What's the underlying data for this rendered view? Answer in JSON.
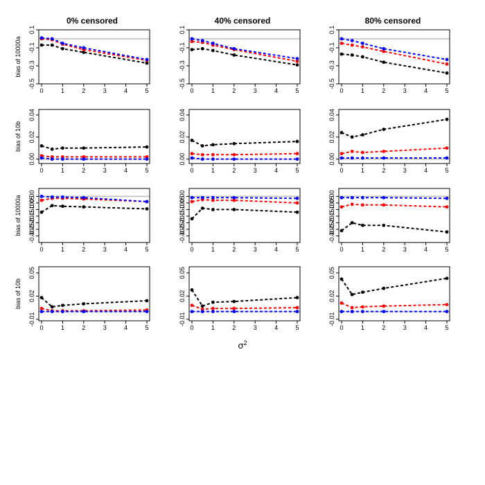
{
  "figure": {
    "x_axis_label": "σ",
    "x_axis_superscript": "2",
    "column_titles": [
      "0% censored",
      "40% censored",
      "80% censored"
    ],
    "row_ylabels": [
      "bias of 10000a",
      "bias of 10b",
      "bias of 10000a",
      "bias of 10b"
    ]
  },
  "colors": {
    "black": "#000000",
    "red": "#ff0000",
    "blue": "#0000ff",
    "reference": "#bebebe"
  },
  "chart_data": [
    {
      "type": "line",
      "row": 0,
      "col": 0,
      "title": "0% censored",
      "ylabel": "bias of 10000a",
      "ylim": [
        -0.5,
        0.1
      ],
      "yticks": [
        -0.5,
        -0.3,
        -0.1,
        0.1
      ],
      "ytick_labels": [
        "-0.5",
        "-0.3",
        "-0.1",
        "0.1"
      ],
      "xlim": [
        0,
        5
      ],
      "xticks": [
        0,
        1,
        2,
        3,
        4,
        5
      ],
      "xtick_labels": [
        "0",
        "1",
        "2",
        "3",
        "4",
        "5"
      ],
      "reference_y": 0,
      "x": [
        0,
        0.5,
        1,
        2,
        5
      ],
      "series": [
        {
          "color": "black",
          "values": [
            -0.07,
            -0.07,
            -0.11,
            -0.15,
            -0.27
          ]
        },
        {
          "color": "red",
          "values": [
            0.0,
            -0.01,
            -0.06,
            -0.12,
            -0.24
          ]
        },
        {
          "color": "blue",
          "values": [
            0.01,
            0.0,
            -0.05,
            -0.1,
            -0.23
          ]
        }
      ]
    },
    {
      "type": "line",
      "row": 0,
      "col": 1,
      "title": "40% censored",
      "ylabel": "",
      "ylim": [
        -0.5,
        0.1
      ],
      "yticks": [
        -0.5,
        -0.3,
        -0.1,
        0.1
      ],
      "ytick_labels": [
        "-0.5",
        "-0.3",
        "-0.1",
        "0.1"
      ],
      "xlim": [
        0,
        5
      ],
      "xticks": [
        0,
        1,
        2,
        3,
        4,
        5
      ],
      "xtick_labels": [
        "0",
        "1",
        "2",
        "3",
        "4",
        "5"
      ],
      "reference_y": 0,
      "x": [
        0,
        0.5,
        1,
        2,
        5
      ],
      "series": [
        {
          "color": "black",
          "values": [
            -0.12,
            -0.11,
            -0.13,
            -0.18,
            -0.29
          ]
        },
        {
          "color": "red",
          "values": [
            -0.03,
            -0.04,
            -0.07,
            -0.12,
            -0.25
          ]
        },
        {
          "color": "blue",
          "values": [
            0.0,
            -0.02,
            -0.05,
            -0.11,
            -0.22
          ]
        }
      ]
    },
    {
      "type": "line",
      "row": 0,
      "col": 2,
      "title": "80% censored",
      "ylabel": "",
      "ylim": [
        -0.5,
        0.1
      ],
      "yticks": [
        -0.5,
        -0.3,
        -0.1,
        0.1
      ],
      "ytick_labels": [
        "-0.5",
        "-0.3",
        "-0.1",
        "0.1"
      ],
      "xlim": [
        0,
        5
      ],
      "xticks": [
        0,
        1,
        2,
        3,
        4,
        5
      ],
      "xtick_labels": [
        "0",
        "1",
        "2",
        "3",
        "4",
        "5"
      ],
      "reference_y": 0,
      "x": [
        0,
        0.5,
        1,
        2,
        5
      ],
      "series": [
        {
          "color": "black",
          "values": [
            -0.17,
            -0.18,
            -0.2,
            -0.26,
            -0.38
          ]
        },
        {
          "color": "red",
          "values": [
            -0.05,
            -0.07,
            -0.09,
            -0.14,
            -0.28
          ]
        },
        {
          "color": "blue",
          "values": [
            0.0,
            -0.02,
            -0.05,
            -0.11,
            -0.23
          ]
        }
      ]
    },
    {
      "type": "line",
      "row": 1,
      "col": 0,
      "title": "",
      "ylabel": "bias of 10b",
      "ylim": [
        -0.004,
        0.045
      ],
      "yticks": [
        0,
        0.02,
        0.04
      ],
      "ytick_labels": [
        "0.00",
        "0.02",
        "0.04"
      ],
      "xlim": [
        0,
        5
      ],
      "xticks": [
        0,
        1,
        2,
        3,
        4,
        5
      ],
      "xtick_labels": [
        "0",
        "1",
        "2",
        "3",
        "4",
        "5"
      ],
      "reference_y": 0,
      "x": [
        0,
        0.5,
        1,
        2,
        5
      ],
      "series": [
        {
          "color": "black",
          "values": [
            0.012,
            0.009,
            0.01,
            0.01,
            0.011
          ]
        },
        {
          "color": "red",
          "values": [
            0.003,
            0.002,
            0.002,
            0.002,
            0.002
          ]
        },
        {
          "color": "blue",
          "values": [
            0.001,
            0.0,
            0.0,
            0.0,
            0.0
          ]
        }
      ]
    },
    {
      "type": "line",
      "row": 1,
      "col": 1,
      "title": "",
      "ylabel": "",
      "ylim": [
        -0.004,
        0.045
      ],
      "yticks": [
        0,
        0.02,
        0.04
      ],
      "ytick_labels": [
        "0.00",
        "0.02",
        "0.04"
      ],
      "xlim": [
        0,
        5
      ],
      "xticks": [
        0,
        1,
        2,
        3,
        4,
        5
      ],
      "xtick_labels": [
        "0",
        "1",
        "2",
        "3",
        "4",
        "5"
      ],
      "reference_y": 0,
      "x": [
        0,
        0.5,
        1,
        2,
        5
      ],
      "series": [
        {
          "color": "black",
          "values": [
            0.017,
            0.012,
            0.013,
            0.014,
            0.016
          ]
        },
        {
          "color": "red",
          "values": [
            0.005,
            0.004,
            0.004,
            0.004,
            0.005
          ]
        },
        {
          "color": "blue",
          "values": [
            0.001,
            0.0,
            0.0,
            0.0,
            0.0
          ]
        }
      ]
    },
    {
      "type": "line",
      "row": 1,
      "col": 2,
      "title": "",
      "ylabel": "",
      "ylim": [
        -0.004,
        0.045
      ],
      "yticks": [
        0,
        0.02,
        0.04
      ],
      "ytick_labels": [
        "0.00",
        "0.02",
        "0.04"
      ],
      "xlim": [
        0,
        5
      ],
      "xticks": [
        0,
        1,
        2,
        3,
        4,
        5
      ],
      "xtick_labels": [
        "0",
        "1",
        "2",
        "3",
        "4",
        "5"
      ],
      "reference_y": 0,
      "x": [
        0,
        0.5,
        1,
        2,
        5
      ],
      "series": [
        {
          "color": "black",
          "values": [
            0.024,
            0.02,
            0.022,
            0.027,
            0.036
          ]
        },
        {
          "color": "red",
          "values": [
            0.005,
            0.007,
            0.006,
            0.007,
            0.01
          ]
        },
        {
          "color": "blue",
          "values": [
            0.001,
            0.001,
            0.001,
            0.001,
            0.001
          ]
        }
      ]
    },
    {
      "type": "line",
      "row": 2,
      "col": 0,
      "title": "",
      "ylabel": "bias of 10000a",
      "ylim": [
        -0.35,
        0.06
      ],
      "yticks": [
        -0.3,
        -0.25,
        -0.2,
        -0.15,
        -0.1,
        -0.05,
        0
      ],
      "ytick_labels": [
        "-0.30",
        "-0.25",
        "-0.20",
        "-0.15",
        "-0.10",
        "-0.05",
        "0.00"
      ],
      "xlim": [
        0,
        5
      ],
      "xticks": [
        0,
        1,
        2,
        3,
        4,
        5
      ],
      "xtick_labels": [
        "0",
        "1",
        "2",
        "3",
        "4",
        "5"
      ],
      "reference_y": 0,
      "x": [
        0,
        0.5,
        1,
        2,
        5
      ],
      "series": [
        {
          "color": "black",
          "values": [
            -0.12,
            -0.07,
            -0.075,
            -0.08,
            -0.095
          ]
        },
        {
          "color": "red",
          "values": [
            -0.03,
            -0.015,
            -0.015,
            -0.02,
            -0.04
          ]
        },
        {
          "color": "blue",
          "values": [
            0.0,
            -0.005,
            -0.005,
            -0.01,
            -0.04
          ]
        }
      ]
    },
    {
      "type": "line",
      "row": 2,
      "col": 1,
      "title": "",
      "ylabel": "",
      "ylim": [
        -0.35,
        0.06
      ],
      "yticks": [
        -0.3,
        -0.25,
        -0.2,
        -0.15,
        -0.1,
        -0.05,
        0
      ],
      "ytick_labels": [
        "-0.30",
        "-0.25",
        "-0.20",
        "-0.15",
        "-0.10",
        "-0.05",
        "0.00"
      ],
      "xlim": [
        0,
        5
      ],
      "xticks": [
        0,
        1,
        2,
        3,
        4,
        5
      ],
      "xtick_labels": [
        "0",
        "1",
        "2",
        "3",
        "4",
        "5"
      ],
      "reference_y": 0,
      "x": [
        0,
        0.5,
        1,
        2,
        5
      ],
      "series": [
        {
          "color": "black",
          "values": [
            -0.17,
            -0.09,
            -0.1,
            -0.1,
            -0.12
          ]
        },
        {
          "color": "red",
          "values": [
            -0.04,
            -0.025,
            -0.03,
            -0.03,
            -0.05
          ]
        },
        {
          "color": "blue",
          "values": [
            -0.01,
            -0.01,
            -0.01,
            -0.01,
            -0.015
          ]
        }
      ]
    },
    {
      "type": "line",
      "row": 2,
      "col": 2,
      "title": "",
      "ylabel": "",
      "ylim": [
        -0.35,
        0.06
      ],
      "yticks": [
        -0.3,
        -0.25,
        -0.2,
        -0.15,
        -0.1,
        -0.05,
        0
      ],
      "ytick_labels": [
        "-0.30",
        "-0.25",
        "-0.20",
        "-0.15",
        "-0.10",
        "-0.05",
        "0.00"
      ],
      "xlim": [
        0,
        5
      ],
      "xticks": [
        0,
        1,
        2,
        3,
        4,
        5
      ],
      "xtick_labels": [
        "0",
        "1",
        "2",
        "3",
        "4",
        "5"
      ],
      "reference_y": 0,
      "x": [
        0,
        0.5,
        1,
        2,
        5
      ],
      "series": [
        {
          "color": "black",
          "values": [
            -0.26,
            -0.2,
            -0.22,
            -0.22,
            -0.27
          ]
        },
        {
          "color": "red",
          "values": [
            -0.08,
            -0.06,
            -0.065,
            -0.065,
            -0.08
          ]
        },
        {
          "color": "blue",
          "values": [
            -0.01,
            -0.01,
            -0.01,
            -0.01,
            -0.015
          ]
        }
      ]
    },
    {
      "type": "line",
      "row": 3,
      "col": 0,
      "title": "",
      "ylabel": "bias of 10b",
      "ylim": [
        -0.012,
        0.058
      ],
      "yticks": [
        -0.01,
        0.02,
        0.05
      ],
      "ytick_labels": [
        "-0.01",
        "0.02",
        "0.05"
      ],
      "xlim": [
        0,
        5
      ],
      "xticks": [
        0,
        1,
        2,
        3,
        4,
        5
      ],
      "xtick_labels": [
        "0",
        "1",
        "2",
        "3",
        "4",
        "5"
      ],
      "reference_y": 0,
      "x": [
        0,
        0.5,
        1,
        2,
        5
      ],
      "series": [
        {
          "color": "black",
          "values": [
            0.018,
            0.006,
            0.008,
            0.01,
            0.014
          ]
        },
        {
          "color": "red",
          "values": [
            0.004,
            0.001,
            0.001,
            0.001,
            0.002
          ]
        },
        {
          "color": "blue",
          "values": [
            0.0,
            0.0,
            0.0,
            0.0,
            0.0
          ]
        }
      ]
    },
    {
      "type": "line",
      "row": 3,
      "col": 1,
      "title": "",
      "ylabel": "",
      "ylim": [
        -0.012,
        0.058
      ],
      "yticks": [
        -0.01,
        0.02,
        0.05
      ],
      "ytick_labels": [
        "-0.01",
        "0.02",
        "0.05"
      ],
      "xlim": [
        0,
        5
      ],
      "xticks": [
        0,
        1,
        2,
        3,
        4,
        5
      ],
      "xtick_labels": [
        "0",
        "1",
        "2",
        "3",
        "4",
        "5"
      ],
      "reference_y": 0,
      "x": [
        0,
        0.5,
        1,
        2,
        5
      ],
      "series": [
        {
          "color": "black",
          "values": [
            0.028,
            0.007,
            0.012,
            0.013,
            0.018
          ]
        },
        {
          "color": "red",
          "values": [
            0.008,
            0.003,
            0.004,
            0.004,
            0.005
          ]
        },
        {
          "color": "blue",
          "values": [
            0.0,
            0.0,
            0.0,
            0.0,
            0.0
          ]
        }
      ]
    },
    {
      "type": "line",
      "row": 3,
      "col": 2,
      "title": "",
      "ylabel": "",
      "ylim": [
        -0.012,
        0.058
      ],
      "yticks": [
        -0.01,
        0.02,
        0.05
      ],
      "ytick_labels": [
        "-0.01",
        "0.02",
        "0.05"
      ],
      "xlim": [
        0,
        5
      ],
      "xticks": [
        0,
        1,
        2,
        3,
        4,
        5
      ],
      "xtick_labels": [
        "0",
        "1",
        "2",
        "3",
        "4",
        "5"
      ],
      "reference_y": 0,
      "x": [
        0,
        0.5,
        1,
        2,
        5
      ],
      "series": [
        {
          "color": "black",
          "values": [
            0.042,
            0.022,
            0.025,
            0.03,
            0.043
          ]
        },
        {
          "color": "red",
          "values": [
            0.011,
            0.005,
            0.006,
            0.007,
            0.009
          ]
        },
        {
          "color": "blue",
          "values": [
            0.0,
            0.0,
            0.0,
            0.0,
            0.0
          ]
        }
      ]
    }
  ]
}
